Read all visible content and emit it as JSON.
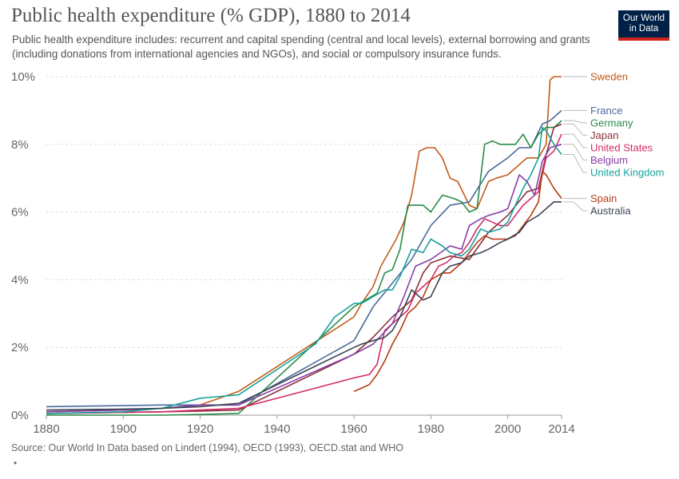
{
  "header": {
    "title": "Public health expenditure (% GDP), 1880 to 2014",
    "subtitle": "Public health expenditure includes: recurrent and capital spending (central and local levels), external borrowing and grants (including donations from international agencies and NGOs), and social or compulsory insurance funds.",
    "logo_line1": "Our World",
    "logo_line2": "in Data"
  },
  "footer": {
    "source": "Source: Our World In Data based on Lindert (1994), OECD (1993), OECD.stat and WHO",
    "bullet": "•"
  },
  "chart_data": {
    "type": "line",
    "title": "Public health expenditure (% GDP), 1880 to 2014",
    "xlabel": "",
    "ylabel": "",
    "xlim": [
      1880,
      2014
    ],
    "ylim": [
      0,
      10
    ],
    "x_ticks": [
      1880,
      1900,
      1920,
      1940,
      1960,
      1980,
      2000,
      2014
    ],
    "x_tick_labels": [
      "1880",
      "1900",
      "1920",
      "1940",
      "1960",
      "1980",
      "2000",
      "2014"
    ],
    "y_ticks": [
      0,
      2,
      4,
      6,
      8,
      10
    ],
    "y_tick_labels": [
      "0%",
      "2%",
      "4%",
      "6%",
      "8%",
      "10%"
    ],
    "grid": "horizontal dashed",
    "legend": "right, labels at line ends",
    "series": [
      {
        "name": "Sweden",
        "color": "#c15c1b",
        "x": [
          1880,
          1900,
          1910,
          1920,
          1930,
          1960,
          1962,
          1965,
          1967,
          1969,
          1971,
          1973,
          1975,
          1977,
          1979,
          1981,
          1983,
          1985,
          1987,
          1990,
          1992,
          1995,
          1997,
          2000,
          2002,
          2005,
          2008,
          2010,
          2011,
          2012,
          2014
        ],
        "y": [
          0.1,
          0.15,
          0.2,
          0.3,
          0.7,
          2.9,
          3.3,
          3.8,
          4.4,
          4.8,
          5.2,
          5.7,
          6.5,
          7.8,
          7.9,
          7.9,
          7.6,
          7.0,
          6.9,
          6.2,
          6.1,
          6.9,
          7.0,
          7.1,
          7.3,
          7.6,
          7.6,
          8.0,
          9.9,
          10.0,
          10.0
        ]
      },
      {
        "name": "France",
        "color": "#4c6a9c",
        "x": [
          1880,
          1900,
          1910,
          1920,
          1930,
          1960,
          1965,
          1970,
          1975,
          1980,
          1985,
          1990,
          1995,
          2000,
          2003,
          2006,
          2009,
          2011,
          2014
        ],
        "y": [
          0.25,
          0.28,
          0.3,
          0.3,
          0.3,
          2.2,
          3.2,
          3.9,
          4.6,
          5.6,
          6.2,
          6.3,
          7.2,
          7.6,
          7.9,
          7.9,
          8.6,
          8.7,
          9.0
        ]
      },
      {
        "name": "Germany",
        "color": "#2a8c47",
        "x": [
          1880,
          1900,
          1910,
          1920,
          1930,
          1960,
          1963,
          1966,
          1968,
          1970,
          1972,
          1974,
          1976,
          1978,
          1980,
          1983,
          1986,
          1988,
          1990,
          1992,
          1994,
          1996,
          1998,
          2000,
          2002,
          2004,
          2006,
          2008,
          2010,
          2012,
          2014
        ],
        "y": [
          0.0,
          0.0,
          0.0,
          0.02,
          0.05,
          3.2,
          3.4,
          3.6,
          4.2,
          4.3,
          4.9,
          6.2,
          6.2,
          6.2,
          6.0,
          6.5,
          6.4,
          6.3,
          6.0,
          6.1,
          8.0,
          8.1,
          8.0,
          8.0,
          8.0,
          8.3,
          7.9,
          8.3,
          8.5,
          8.5,
          8.7
        ]
      },
      {
        "name": "Japan",
        "color": "#883039",
        "x": [
          1880,
          1900,
          1910,
          1920,
          1930,
          1960,
          1965,
          1970,
          1975,
          1978,
          1980,
          1985,
          1990,
          1995,
          2000,
          2005,
          2008,
          2010,
          2012,
          2014
        ],
        "y": [
          0.05,
          0.08,
          0.1,
          0.12,
          0.15,
          1.8,
          2.3,
          2.9,
          3.4,
          4.2,
          4.5,
          4.7,
          4.6,
          5.4,
          5.9,
          6.6,
          6.7,
          7.7,
          8.5,
          8.6
        ]
      },
      {
        "name": "United States",
        "color": "#d42b69",
        "x": [
          1880,
          1900,
          1910,
          1920,
          1930,
          1960,
          1962,
          1964,
          1966,
          1968,
          1970,
          1972,
          1974,
          1976,
          1978,
          1980,
          1982,
          1984,
          1986,
          1988,
          1990,
          1992,
          1994,
          1996,
          1998,
          2000,
          2002,
          2004,
          2006,
          2008,
          2010,
          2012,
          2014
        ],
        "y": [
          0.05,
          0.08,
          0.1,
          0.15,
          0.2,
          1.1,
          1.15,
          1.2,
          1.5,
          2.5,
          2.7,
          2.9,
          3.1,
          3.6,
          3.8,
          4.0,
          4.4,
          4.5,
          4.7,
          4.8,
          5.1,
          5.5,
          5.8,
          5.7,
          5.6,
          5.6,
          5.9,
          6.2,
          6.4,
          6.6,
          7.6,
          7.8,
          8.3
        ]
      },
      {
        "name": "Belgium",
        "color": "#883da8",
        "x": [
          1880,
          1900,
          1910,
          1920,
          1930,
          1960,
          1965,
          1970,
          1973,
          1976,
          1980,
          1985,
          1988,
          1990,
          1993,
          1995,
          1998,
          2000,
          2003,
          2005,
          2007,
          2009,
          2011,
          2014
        ],
        "y": [
          0.1,
          0.15,
          0.2,
          0.3,
          0.3,
          1.8,
          2.1,
          2.7,
          3.5,
          4.4,
          4.6,
          5.0,
          4.9,
          5.6,
          5.8,
          5.9,
          6.0,
          6.1,
          7.1,
          6.9,
          6.5,
          7.5,
          7.9,
          8.0
        ]
      },
      {
        "name": "United Kingdom",
        "color": "#18a19e",
        "x": [
          1880,
          1900,
          1910,
          1920,
          1930,
          1950,
          1955,
          1960,
          1962,
          1965,
          1968,
          1970,
          1972,
          1975,
          1978,
          1980,
          1983,
          1985,
          1988,
          1990,
          1993,
          1995,
          1998,
          2000,
          2002,
          2004,
          2006,
          2008,
          2009,
          2010,
          2012,
          2014
        ],
        "y": [
          0.05,
          0.1,
          0.2,
          0.5,
          0.6,
          2.1,
          2.9,
          3.3,
          3.3,
          3.5,
          3.7,
          3.7,
          4.1,
          4.9,
          4.8,
          5.2,
          5.0,
          4.8,
          4.7,
          4.9,
          5.5,
          5.4,
          5.5,
          5.7,
          6.2,
          6.7,
          7.1,
          7.6,
          8.5,
          8.4,
          8.0,
          7.7
        ]
      },
      {
        "name": "Spain",
        "color": "#b53a15",
        "x": [
          1960,
          1962,
          1964,
          1966,
          1968,
          1970,
          1972,
          1974,
          1976,
          1978,
          1980,
          1983,
          1985,
          1988,
          1990,
          1992,
          1994,
          1996,
          1998,
          2000,
          2002,
          2004,
          2006,
          2008,
          2009,
          2010,
          2012,
          2014
        ],
        "y": [
          0.7,
          0.8,
          0.9,
          1.2,
          1.6,
          2.1,
          2.5,
          3.0,
          3.2,
          3.5,
          4.0,
          4.2,
          4.2,
          4.5,
          4.8,
          5.1,
          5.3,
          5.2,
          5.2,
          5.2,
          5.3,
          5.6,
          5.9,
          6.3,
          7.2,
          7.1,
          6.7,
          6.4
        ]
      },
      {
        "name": "Australia",
        "color": "#3d4353",
        "x": [
          1880,
          1900,
          1910,
          1920,
          1930,
          1960,
          1962,
          1965,
          1968,
          1970,
          1972,
          1975,
          1978,
          1980,
          1983,
          1985,
          1988,
          1990,
          1993,
          1995,
          1998,
          2000,
          2003,
          2005,
          2008,
          2010,
          2012,
          2014
        ],
        "y": [
          0.15,
          0.18,
          0.2,
          0.25,
          0.35,
          2.0,
          2.1,
          2.2,
          2.3,
          2.5,
          2.9,
          3.7,
          3.4,
          3.5,
          4.2,
          4.4,
          4.5,
          4.7,
          4.8,
          4.9,
          5.1,
          5.2,
          5.4,
          5.7,
          5.9,
          6.1,
          6.3,
          6.3
        ]
      }
    ]
  }
}
